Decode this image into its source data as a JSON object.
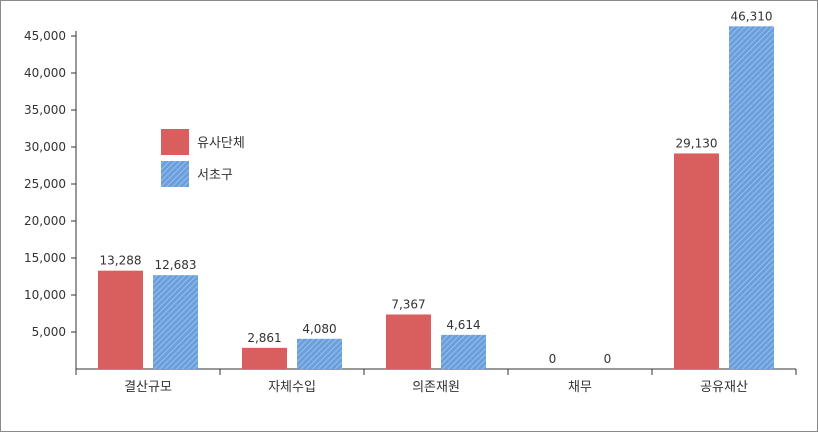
{
  "chart_data": {
    "type": "bar",
    "categories": [
      "결산규모",
      "자체수입",
      "의존재원",
      "채무",
      "공유재산"
    ],
    "series": [
      {
        "name": "유사단체",
        "values": [
          13288,
          2861,
          7367,
          0,
          29130
        ],
        "color": "#d95f5f",
        "pattern": "solid"
      },
      {
        "name": "서초구",
        "values": [
          12683,
          4080,
          4614,
          0,
          46310
        ],
        "color": "#6a9fdd",
        "pattern": "diagonal-hatch"
      }
    ],
    "value_labels": {
      "유사단체": [
        "13,288",
        "2,861",
        "7,367",
        "0",
        "29,130"
      ],
      "서초구": [
        "12,683",
        "4,080",
        "4,614",
        "0",
        "46,310"
      ]
    },
    "ylim": [
      0,
      45000
    ],
    "yticks": [
      "5,000",
      "10,000",
      "15,000",
      "20,000",
      "25,000",
      "30,000",
      "35,000",
      "40,000",
      "45,000"
    ],
    "legend_position": "upper-left inside plot",
    "grid": false
  }
}
